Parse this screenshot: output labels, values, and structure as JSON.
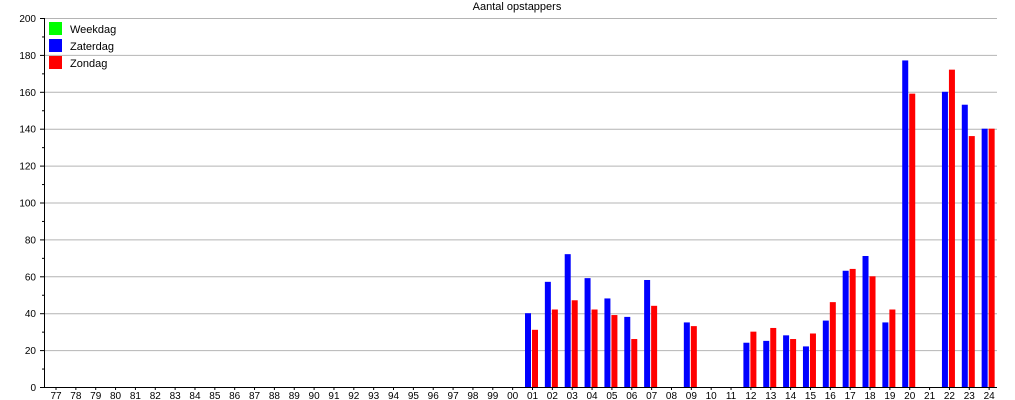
{
  "chart_data": {
    "type": "bar",
    "title": "Aantal opstappers",
    "xlabel": "",
    "ylabel": "",
    "ylim": [
      0,
      200
    ],
    "yticks": [
      0,
      20,
      40,
      60,
      80,
      100,
      120,
      140,
      160,
      180,
      200
    ],
    "grid": true,
    "legend_position": "top-left",
    "categories": [
      "77",
      "78",
      "79",
      "80",
      "81",
      "82",
      "83",
      "84",
      "85",
      "86",
      "87",
      "88",
      "89",
      "90",
      "91",
      "92",
      "93",
      "94",
      "95",
      "96",
      "97",
      "98",
      "99",
      "00",
      "01",
      "02",
      "03",
      "04",
      "05",
      "06",
      "07",
      "08",
      "09",
      "10",
      "11",
      "12",
      "13",
      "14",
      "15",
      "16",
      "17",
      "18",
      "19",
      "20",
      "21",
      "22",
      "23",
      "24"
    ],
    "series": [
      {
        "name": "Weekdag",
        "color": "#00ff00",
        "values": [
          null,
          null,
          null,
          null,
          null,
          null,
          null,
          null,
          null,
          null,
          null,
          null,
          null,
          null,
          null,
          null,
          null,
          null,
          null,
          null,
          null,
          null,
          null,
          null,
          null,
          null,
          null,
          null,
          null,
          null,
          null,
          null,
          null,
          null,
          null,
          null,
          null,
          null,
          null,
          null,
          null,
          null,
          null,
          null,
          null,
          null,
          null,
          null
        ]
      },
      {
        "name": "Zaterdag",
        "color": "#0000ff",
        "values": [
          null,
          null,
          null,
          null,
          null,
          null,
          null,
          null,
          null,
          null,
          null,
          null,
          null,
          null,
          null,
          null,
          null,
          null,
          null,
          null,
          null,
          null,
          null,
          null,
          40,
          57,
          72,
          59,
          48,
          38,
          58,
          null,
          35,
          null,
          null,
          24,
          25,
          28,
          22,
          36,
          63,
          71,
          35,
          177,
          null,
          160,
          153,
          140
        ]
      },
      {
        "name": "Zondag",
        "color": "#ff0000",
        "values": [
          null,
          null,
          null,
          null,
          null,
          null,
          null,
          null,
          null,
          null,
          null,
          null,
          null,
          null,
          null,
          null,
          null,
          null,
          null,
          null,
          null,
          null,
          null,
          null,
          31,
          42,
          47,
          42,
          39,
          26,
          44,
          null,
          33,
          null,
          null,
          30,
          32,
          26,
          29,
          46,
          64,
          60,
          42,
          159,
          null,
          172,
          136,
          140
        ]
      }
    ]
  }
}
